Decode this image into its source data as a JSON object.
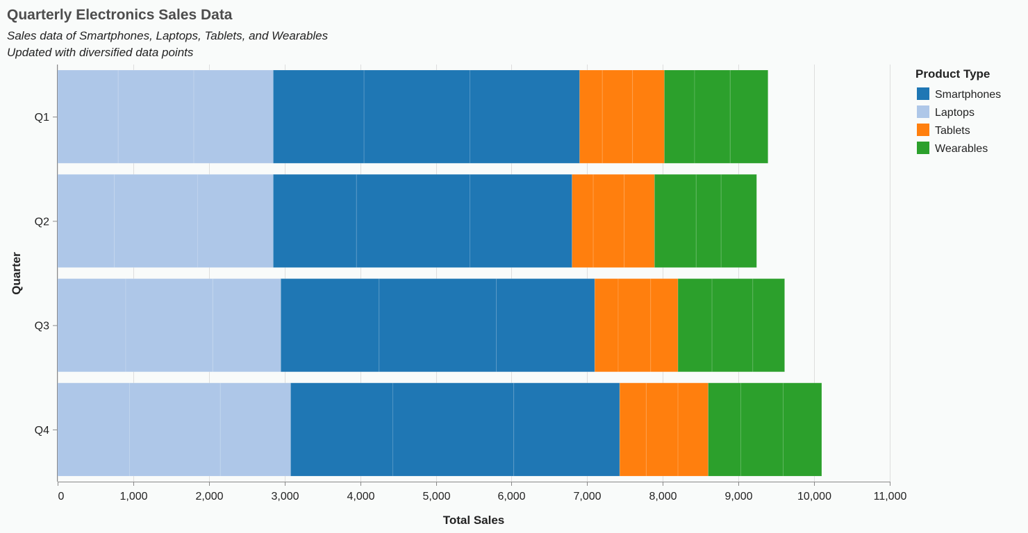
{
  "chart_data": {
    "type": "bar",
    "orientation": "horizontal",
    "stacked": true,
    "title": "Quarterly Electronics Sales Data",
    "subtitle": [
      "Sales data of Smartphones, Laptops, Tablets, and Wearables",
      "Updated with diversified data points"
    ],
    "xlabel": "Total Sales",
    "ylabel": "Quarter",
    "xlim": [
      0,
      11000
    ],
    "xticks": [
      0,
      1000,
      2000,
      3000,
      4000,
      5000,
      6000,
      7000,
      8000,
      9000,
      10000,
      11000
    ],
    "xtick_labels": [
      "0",
      "1,000",
      "2,000",
      "3,000",
      "4,000",
      "5,000",
      "6,000",
      "7,000",
      "8,000",
      "9,000",
      "10,000",
      "11,000"
    ],
    "grid": true,
    "categories": [
      "Q1",
      "Q2",
      "Q3",
      "Q4"
    ],
    "stack_order": [
      "Laptops",
      "Smartphones",
      "Tablets",
      "Wearables"
    ],
    "series": [
      {
        "name": "Smartphones",
        "color": "#1f77b4",
        "segments": [
          [
            1200,
            1400,
            1450
          ],
          [
            1100,
            1500,
            1350
          ],
          [
            1300,
            1550,
            1300
          ],
          [
            1350,
            1600,
            1400
          ]
        ]
      },
      {
        "name": "Laptops",
        "color": "#aec7e8",
        "segments": [
          [
            800,
            1000,
            1050
          ],
          [
            750,
            1100,
            1000
          ],
          [
            900,
            1150,
            900
          ],
          [
            950,
            1200,
            930
          ]
        ]
      },
      {
        "name": "Tablets",
        "color": "#ff7f0e",
        "segments": [
          [
            300,
            400,
            420
          ],
          [
            280,
            410,
            400
          ],
          [
            310,
            430,
            360
          ],
          [
            350,
            420,
            400
          ]
        ]
      },
      {
        "name": "Wearables",
        "color": "#2ca02c",
        "segments": [
          [
            400,
            470,
            500
          ],
          [
            550,
            330,
            470
          ],
          [
            450,
            540,
            420
          ],
          [
            430,
            560,
            510
          ]
        ]
      }
    ],
    "legend": {
      "title": "Product Type",
      "position": "right",
      "entries": [
        "Smartphones",
        "Laptops",
        "Tablets",
        "Wearables"
      ]
    }
  }
}
